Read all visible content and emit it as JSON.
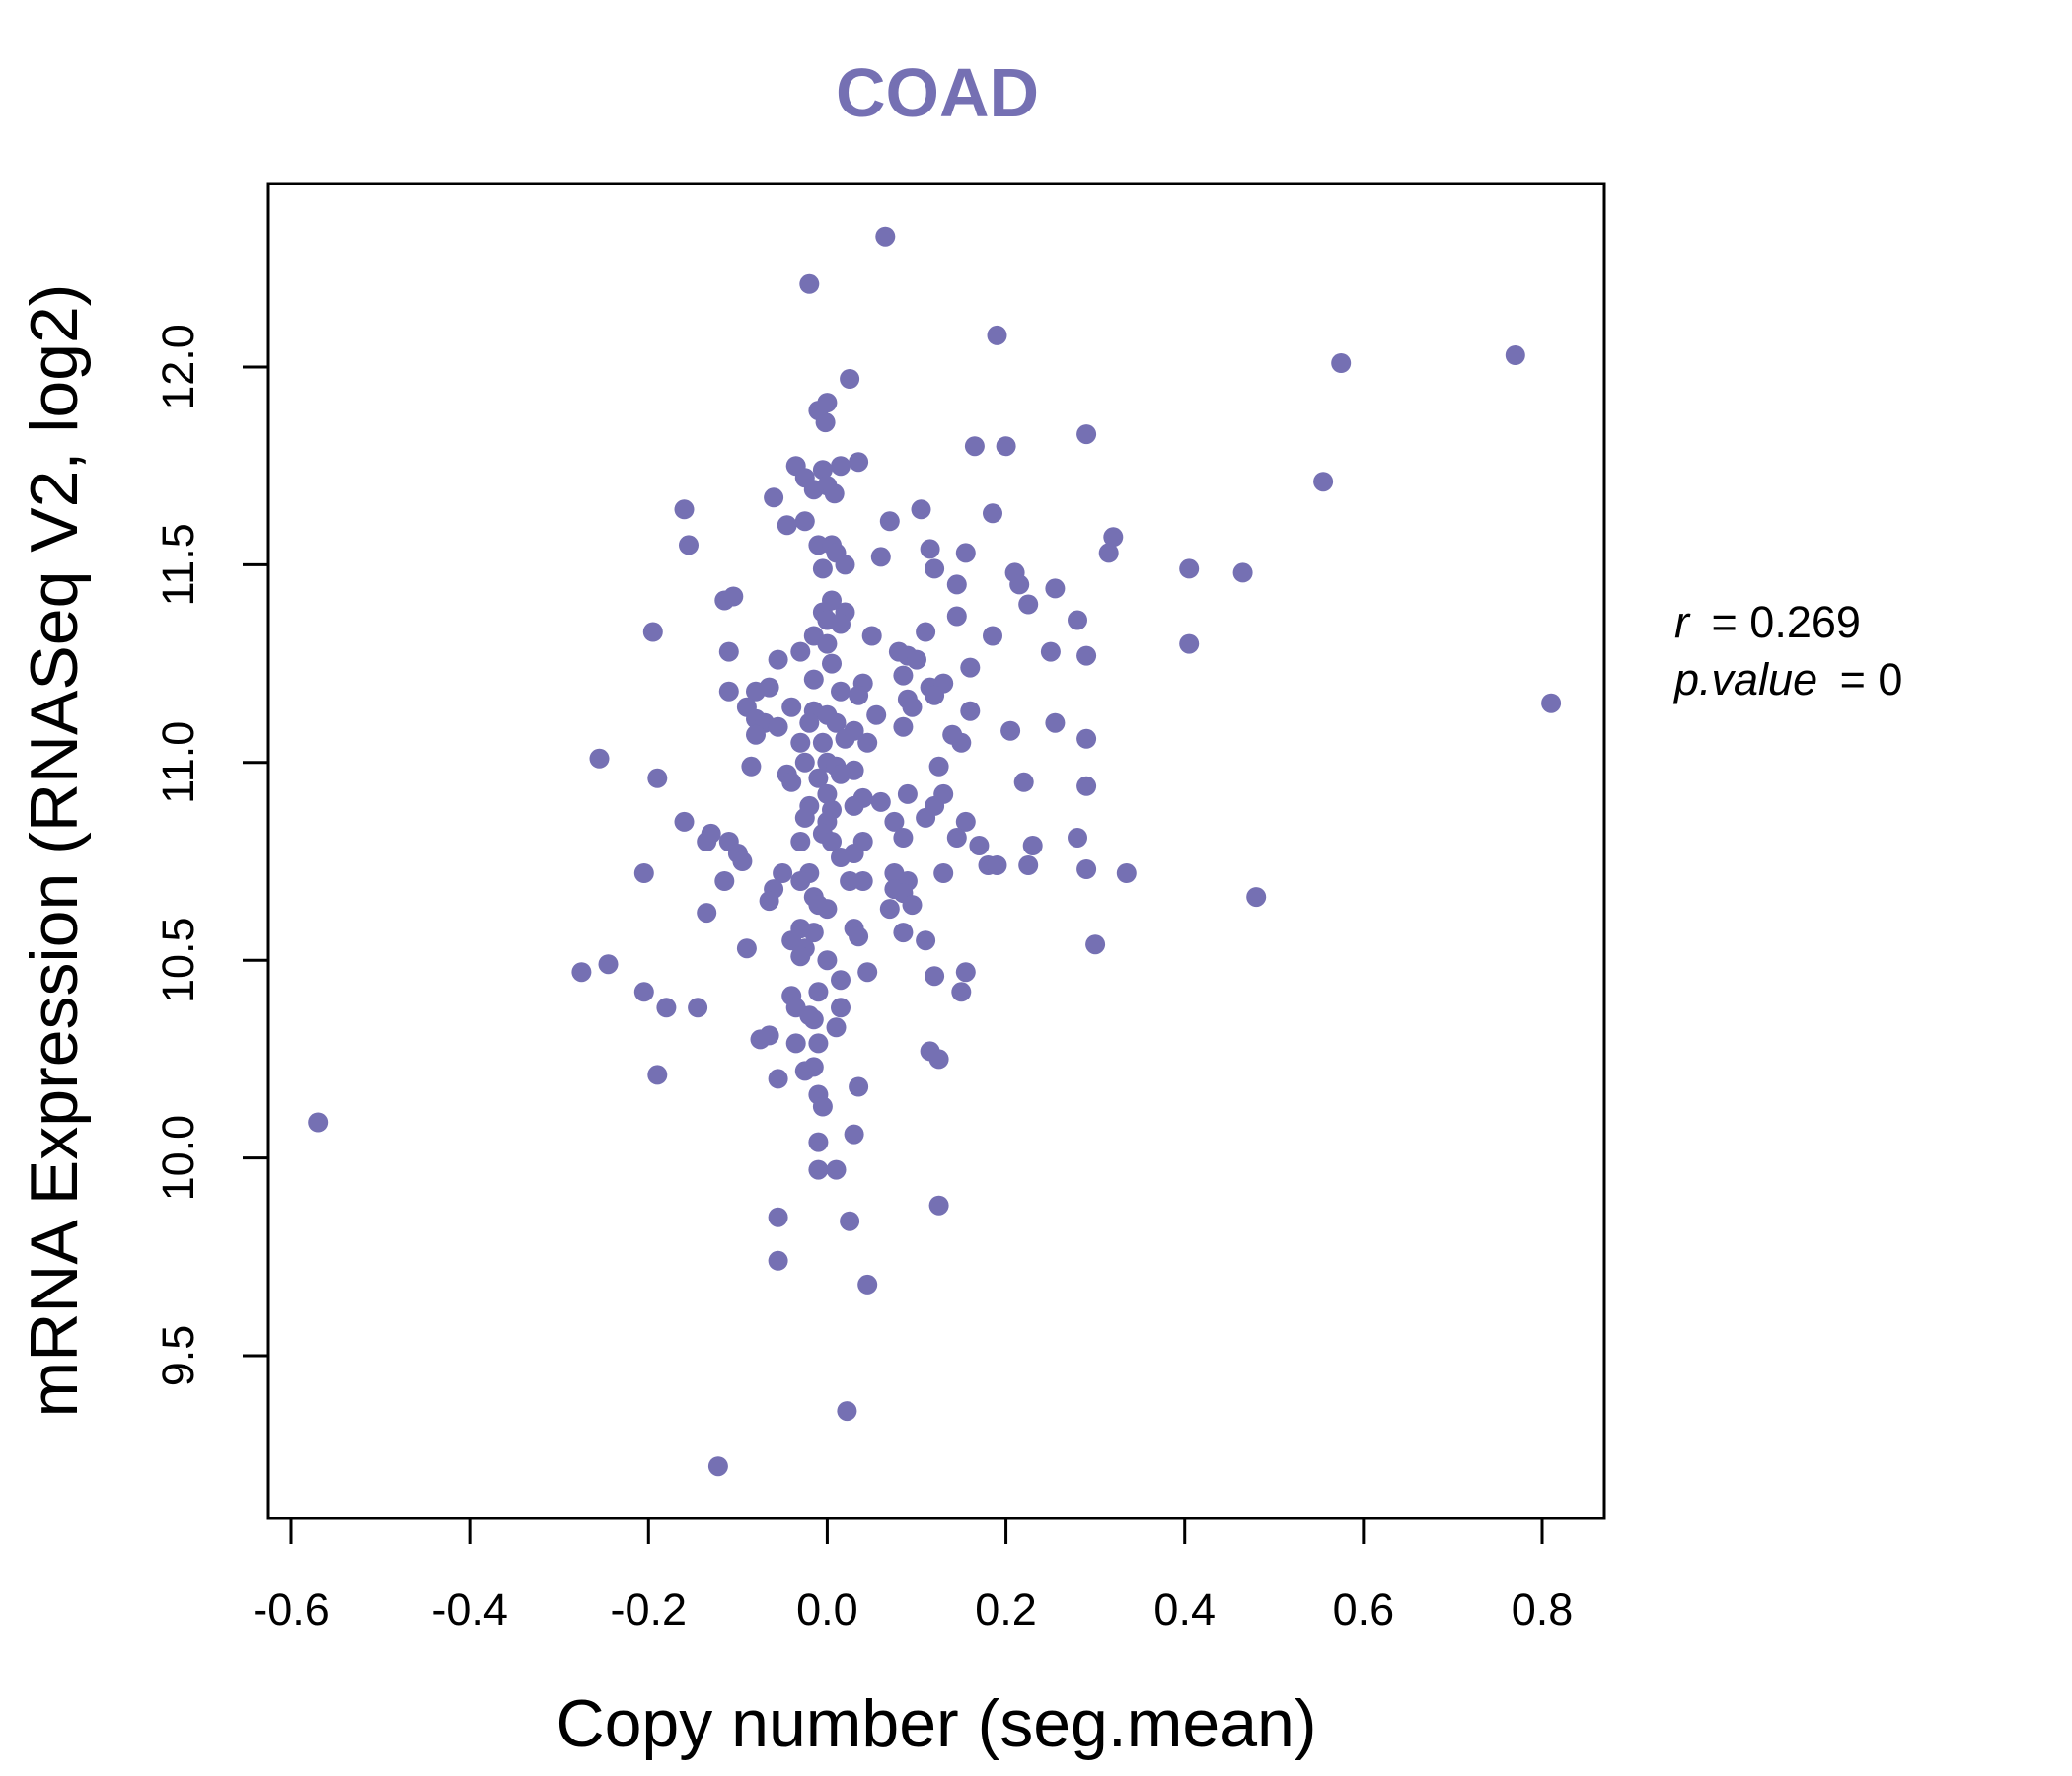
{
  "chart_data": {
    "type": "scatter",
    "title": "COAD",
    "xlabel": "Copy number (seg.mean)",
    "ylabel": "mRNA Expression (RNASeq V2, log2)",
    "xlim": [
      -0.62,
      0.87
    ],
    "ylim": [
      9.15,
      12.45
    ],
    "xticks": [
      -0.6,
      -0.4,
      -0.2,
      0.0,
      0.2,
      0.4,
      0.6,
      0.8
    ],
    "xtick_labels": [
      "-0.6",
      "-0.4",
      "-0.2",
      "0.0",
      "0.2",
      "0.4",
      "0.6",
      "0.8"
    ],
    "yticks": [
      9.5,
      10.0,
      10.5,
      11.0,
      11.5,
      12.0
    ],
    "ytick_labels": [
      "9.5",
      "10.0",
      "10.5",
      "11.0",
      "11.5",
      "12.0"
    ],
    "grid": false,
    "point_color": "#7570b3",
    "title_color": "#7570b3",
    "annotations": {
      "r_label": "r",
      "r_equals": "= 0.269",
      "p_label": "p.value",
      "p_equals": "= 0"
    },
    "points": [
      [
        0.065,
        12.33
      ],
      [
        -0.02,
        12.21
      ],
      [
        0.19,
        12.08
      ],
      [
        0.575,
        12.01
      ],
      [
        0.77,
        12.03
      ],
      [
        0.025,
        11.97
      ],
      [
        -0.01,
        11.89
      ],
      [
        0.0,
        11.91
      ],
      [
        -0.002,
        11.86
      ],
      [
        0.29,
        11.83
      ],
      [
        0.165,
        11.8
      ],
      [
        0.2,
        11.8
      ],
      [
        -0.035,
        11.75
      ],
      [
        -0.025,
        11.72
      ],
      [
        -0.005,
        11.74
      ],
      [
        0.015,
        11.75
      ],
      [
        0.035,
        11.76
      ],
      [
        0.0,
        11.7
      ],
      [
        0.008,
        11.68
      ],
      [
        -0.015,
        11.69
      ],
      [
        -0.06,
        11.67
      ],
      [
        0.555,
        11.71
      ],
      [
        -0.16,
        11.64
      ],
      [
        0.105,
        11.64
      ],
      [
        0.07,
        11.61
      ],
      [
        -0.045,
        11.6
      ],
      [
        -0.025,
        11.61
      ],
      [
        0.185,
        11.63
      ],
      [
        -0.155,
        11.55
      ],
      [
        -0.01,
        11.55
      ],
      [
        0.005,
        11.55
      ],
      [
        0.01,
        11.53
      ],
      [
        0.06,
        11.52
      ],
      [
        0.115,
        11.54
      ],
      [
        0.155,
        11.53
      ],
      [
        0.32,
        11.57
      ],
      [
        0.315,
        11.53
      ],
      [
        -0.005,
        11.49
      ],
      [
        0.02,
        11.5
      ],
      [
        0.12,
        11.49
      ],
      [
        0.405,
        11.49
      ],
      [
        0.465,
        11.48
      ],
      [
        0.21,
        11.48
      ],
      [
        -0.115,
        11.41
      ],
      [
        -0.105,
        11.42
      ],
      [
        0.005,
        11.41
      ],
      [
        0.145,
        11.45
      ],
      [
        0.215,
        11.45
      ],
      [
        0.255,
        11.44
      ],
      [
        0.225,
        11.4
      ],
      [
        -0.005,
        11.38
      ],
      [
        0.02,
        11.38
      ],
      [
        0.015,
        11.35
      ],
      [
        0.0,
        11.36
      ],
      [
        0.145,
        11.37
      ],
      [
        0.28,
        11.36
      ],
      [
        -0.195,
        11.33
      ],
      [
        -0.015,
        11.32
      ],
      [
        0.0,
        11.3
      ],
      [
        0.05,
        11.32
      ],
      [
        0.11,
        11.33
      ],
      [
        0.185,
        11.32
      ],
      [
        0.405,
        11.3
      ],
      [
        -0.11,
        11.28
      ],
      [
        -0.03,
        11.28
      ],
      [
        -0.055,
        11.26
      ],
      [
        0.08,
        11.28
      ],
      [
        0.09,
        11.27
      ],
      [
        0.1,
        11.26
      ],
      [
        0.25,
        11.28
      ],
      [
        0.29,
        11.27
      ],
      [
        0.005,
        11.25
      ],
      [
        -0.015,
        11.21
      ],
      [
        0.04,
        11.2
      ],
      [
        0.085,
        11.22
      ],
      [
        0.115,
        11.19
      ],
      [
        0.13,
        11.2
      ],
      [
        0.16,
        11.24
      ],
      [
        -0.11,
        11.18
      ],
      [
        -0.08,
        11.18
      ],
      [
        -0.065,
        11.19
      ],
      [
        0.015,
        11.18
      ],
      [
        0.035,
        11.17
      ],
      [
        0.09,
        11.16
      ],
      [
        0.12,
        11.17
      ],
      [
        -0.09,
        11.14
      ],
      [
        -0.04,
        11.14
      ],
      [
        -0.015,
        11.13
      ],
      [
        0.0,
        11.12
      ],
      [
        0.055,
        11.12
      ],
      [
        0.095,
        11.14
      ],
      [
        0.16,
        11.13
      ],
      [
        -0.08,
        11.11
      ],
      [
        -0.07,
        11.1
      ],
      [
        -0.055,
        11.09
      ],
      [
        -0.02,
        11.1
      ],
      [
        0.01,
        11.1
      ],
      [
        0.03,
        11.08
      ],
      [
        0.085,
        11.09
      ],
      [
        0.14,
        11.07
      ],
      [
        0.205,
        11.08
      ],
      [
        0.255,
        11.1
      ],
      [
        -0.08,
        11.07
      ],
      [
        -0.03,
        11.05
      ],
      [
        -0.005,
        11.05
      ],
      [
        0.02,
        11.06
      ],
      [
        0.045,
        11.05
      ],
      [
        0.15,
        11.05
      ],
      [
        0.29,
        11.06
      ],
      [
        -0.255,
        11.01
      ],
      [
        -0.085,
        10.99
      ],
      [
        -0.025,
        11.0
      ],
      [
        0.0,
        11.0
      ],
      [
        0.01,
        10.99
      ],
      [
        0.03,
        10.98
      ],
      [
        0.125,
        10.99
      ],
      [
        -0.045,
        10.97
      ],
      [
        -0.01,
        10.96
      ],
      [
        0.015,
        10.97
      ],
      [
        -0.04,
        10.95
      ],
      [
        0.22,
        10.95
      ],
      [
        -0.19,
        10.96
      ],
      [
        0.29,
        10.94
      ],
      [
        0.0,
        10.92
      ],
      [
        0.04,
        10.91
      ],
      [
        0.09,
        10.92
      ],
      [
        0.13,
        10.92
      ],
      [
        -0.02,
        10.89
      ],
      [
        0.005,
        10.88
      ],
      [
        0.03,
        10.89
      ],
      [
        0.06,
        10.9
      ],
      [
        0.12,
        10.89
      ],
      [
        -0.16,
        10.85
      ],
      [
        -0.025,
        10.86
      ],
      [
        0.0,
        10.85
      ],
      [
        0.075,
        10.85
      ],
      [
        0.11,
        10.86
      ],
      [
        0.155,
        10.85
      ],
      [
        -0.13,
        10.82
      ],
      [
        -0.135,
        10.8
      ],
      [
        -0.03,
        10.8
      ],
      [
        -0.005,
        10.82
      ],
      [
        0.005,
        10.8
      ],
      [
        0.04,
        10.8
      ],
      [
        0.085,
        10.81
      ],
      [
        0.145,
        10.81
      ],
      [
        0.28,
        10.81
      ],
      [
        -0.11,
        10.8
      ],
      [
        -0.1,
        10.77
      ],
      [
        -0.095,
        10.75
      ],
      [
        0.015,
        10.76
      ],
      [
        0.03,
        10.77
      ],
      [
        0.17,
        10.79
      ],
      [
        0.23,
        10.79
      ],
      [
        -0.205,
        10.72
      ],
      [
        -0.115,
        10.7
      ],
      [
        -0.05,
        10.72
      ],
      [
        -0.02,
        10.72
      ],
      [
        0.025,
        10.7
      ],
      [
        0.04,
        10.7
      ],
      [
        0.075,
        10.72
      ],
      [
        0.09,
        10.7
      ],
      [
        0.13,
        10.72
      ],
      [
        0.18,
        10.74
      ],
      [
        0.19,
        10.74
      ],
      [
        0.225,
        10.74
      ],
      [
        0.29,
        10.73
      ],
      [
        0.335,
        10.72
      ],
      [
        -0.06,
        10.68
      ],
      [
        -0.03,
        10.7
      ],
      [
        -0.015,
        10.66
      ],
      [
        0.075,
        10.68
      ],
      [
        0.085,
        10.67
      ],
      [
        0.48,
        10.66
      ],
      [
        -0.065,
        10.65
      ],
      [
        -0.01,
        10.64
      ],
      [
        0.0,
        10.63
      ],
      [
        0.07,
        10.63
      ],
      [
        0.095,
        10.64
      ],
      [
        -0.135,
        10.62
      ],
      [
        -0.03,
        10.58
      ],
      [
        -0.015,
        10.57
      ],
      [
        0.03,
        10.58
      ],
      [
        0.085,
        10.57
      ],
      [
        -0.04,
        10.55
      ],
      [
        -0.025,
        10.53
      ],
      [
        0.035,
        10.56
      ],
      [
        0.11,
        10.55
      ],
      [
        0.3,
        10.54
      ],
      [
        -0.09,
        10.53
      ],
      [
        -0.03,
        10.51
      ],
      [
        0.0,
        10.5
      ],
      [
        0.045,
        10.47
      ],
      [
        -0.275,
        10.47
      ],
      [
        -0.245,
        10.49
      ],
      [
        0.015,
        10.45
      ],
      [
        0.12,
        10.46
      ],
      [
        0.155,
        10.47
      ],
      [
        -0.205,
        10.42
      ],
      [
        -0.04,
        10.41
      ],
      [
        -0.01,
        10.42
      ],
      [
        0.15,
        10.42
      ],
      [
        -0.18,
        10.38
      ],
      [
        -0.145,
        10.38
      ],
      [
        -0.035,
        10.38
      ],
      [
        0.015,
        10.38
      ],
      [
        -0.02,
        10.36
      ],
      [
        -0.015,
        10.35
      ],
      [
        0.01,
        10.33
      ],
      [
        -0.075,
        10.3
      ],
      [
        -0.065,
        10.31
      ],
      [
        -0.035,
        10.29
      ],
      [
        -0.01,
        10.29
      ],
      [
        0.115,
        10.27
      ],
      [
        0.125,
        10.25
      ],
      [
        -0.19,
        10.21
      ],
      [
        -0.025,
        10.22
      ],
      [
        -0.015,
        10.23
      ],
      [
        -0.055,
        10.2
      ],
      [
        -0.01,
        10.16
      ],
      [
        -0.005,
        10.13
      ],
      [
        0.035,
        10.18
      ],
      [
        -0.57,
        10.09
      ],
      [
        0.03,
        10.06
      ],
      [
        -0.01,
        10.04
      ],
      [
        -0.01,
        9.97
      ],
      [
        0.01,
        9.97
      ],
      [
        -0.055,
        9.85
      ],
      [
        0.025,
        9.84
      ],
      [
        0.125,
        9.88
      ],
      [
        -0.055,
        9.74
      ],
      [
        0.045,
        9.68
      ],
      [
        0.022,
        9.36
      ],
      [
        -0.122,
        9.22
      ],
      [
        0.81,
        11.15
      ]
    ]
  }
}
